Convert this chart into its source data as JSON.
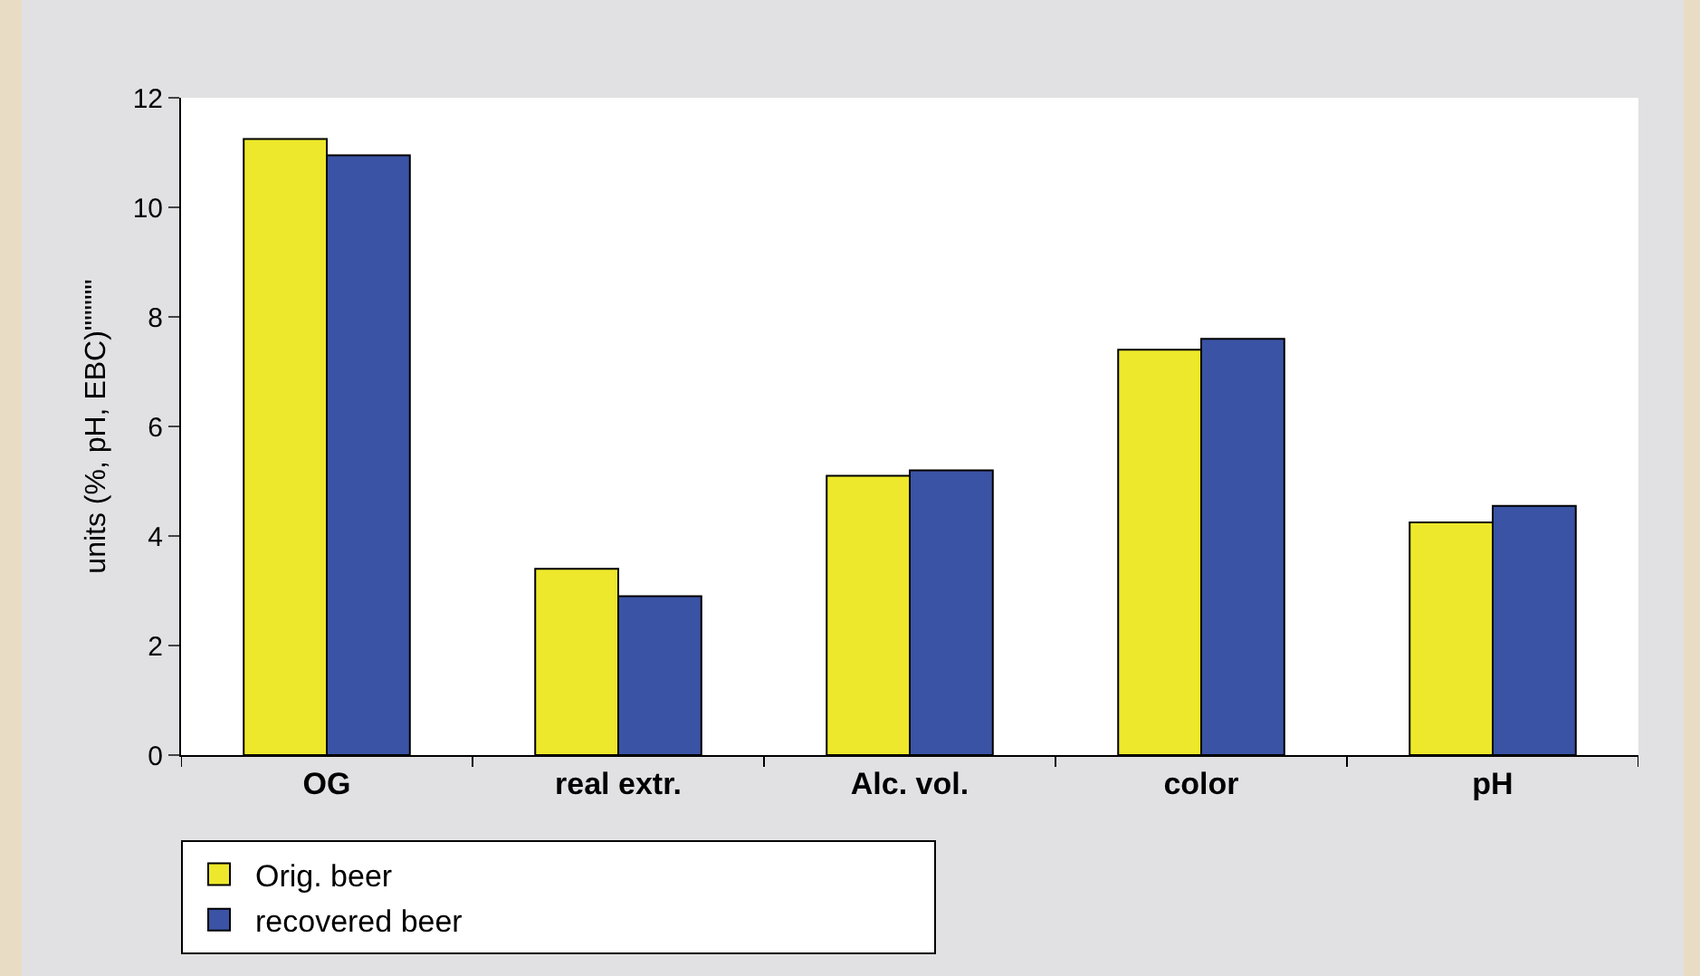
{
  "chart_data": {
    "type": "bar",
    "ylabel": "units (%, pH, EBC)\"\"\"\"\"",
    "categories": [
      "OG",
      "real extr.",
      "Alc. vol.",
      "color",
      "pH"
    ],
    "series": [
      {
        "name": "Orig. beer",
        "color": "#ede82b",
        "values": [
          11.25,
          3.4,
          5.1,
          7.4,
          4.25
        ]
      },
      {
        "name": "recovered beer",
        "color": "#3a53a4",
        "values": [
          10.95,
          2.9,
          5.2,
          7.6,
          4.55
        ]
      }
    ],
    "ylim": [
      0,
      12
    ],
    "yticks": [
      0,
      2,
      4,
      6,
      8,
      10,
      12
    ],
    "grid": false,
    "legend": "bottom"
  }
}
